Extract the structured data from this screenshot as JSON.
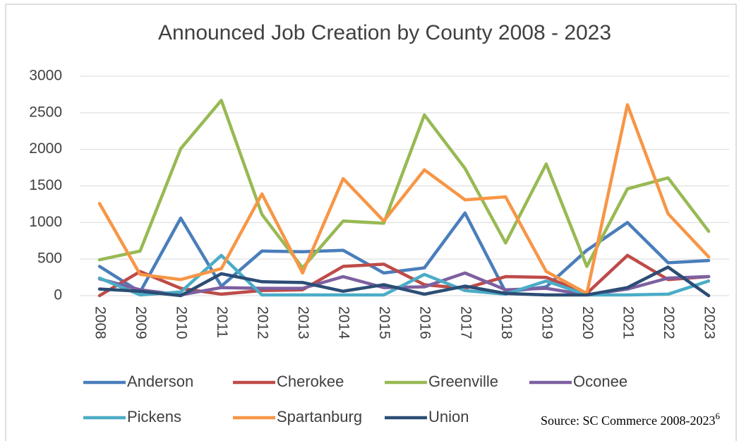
{
  "chart_data": {
    "type": "line",
    "title": "Announced Job Creation by County 2008 - 2023",
    "source": "Source: SC Commerce 2008-2023",
    "source_note": "6",
    "categories": [
      "2008",
      "2009",
      "2010",
      "2011",
      "2012",
      "2013",
      "2014",
      "2015",
      "2016",
      "2017",
      "2018",
      "2019",
      "2020",
      "2021",
      "2022",
      "2023"
    ],
    "ylim": [
      0,
      3000
    ],
    "yticks": [
      0,
      500,
      1000,
      1500,
      2000,
      2500,
      3000
    ],
    "grid": true,
    "legend": "bottom",
    "series": [
      {
        "name": "Anderson",
        "color": "#4a7ebb",
        "values": [
          400,
          50,
          1060,
          130,
          610,
          600,
          620,
          310,
          380,
          1130,
          50,
          120,
          620,
          1000,
          450,
          480
        ]
      },
      {
        "name": "Cherokee",
        "color": "#be4b48",
        "values": [
          0,
          330,
          100,
          20,
          70,
          80,
          400,
          430,
          150,
          100,
          260,
          250,
          30,
          550,
          220,
          260
        ]
      },
      {
        "name": "Greenville",
        "color": "#98b954",
        "values": [
          490,
          610,
          2010,
          2670,
          1110,
          380,
          1020,
          990,
          2470,
          1740,
          720,
          1800,
          400,
          1460,
          1610,
          880
        ]
      },
      {
        "name": "Oconee",
        "color": "#7d60a0",
        "values": [
          230,
          80,
          10,
          110,
          100,
          100,
          260,
          110,
          120,
          310,
          80,
          100,
          10,
          90,
          240,
          260
        ]
      },
      {
        "name": "Pickens",
        "color": "#4bacc6",
        "values": [
          240,
          10,
          50,
          550,
          10,
          10,
          10,
          10,
          290,
          70,
          20,
          200,
          10,
          10,
          20,
          200
        ]
      },
      {
        "name": "Spartanburg",
        "color": "#f79646",
        "values": [
          1260,
          290,
          220,
          370,
          1390,
          310,
          1600,
          1020,
          1720,
          1310,
          1350,
          330,
          30,
          2610,
          1120,
          530
        ]
      },
      {
        "name": "Union",
        "color": "#2c4d75",
        "values": [
          90,
          60,
          0,
          300,
          190,
          180,
          60,
          150,
          20,
          130,
          30,
          10,
          10,
          110,
          390,
          0
        ]
      }
    ]
  }
}
